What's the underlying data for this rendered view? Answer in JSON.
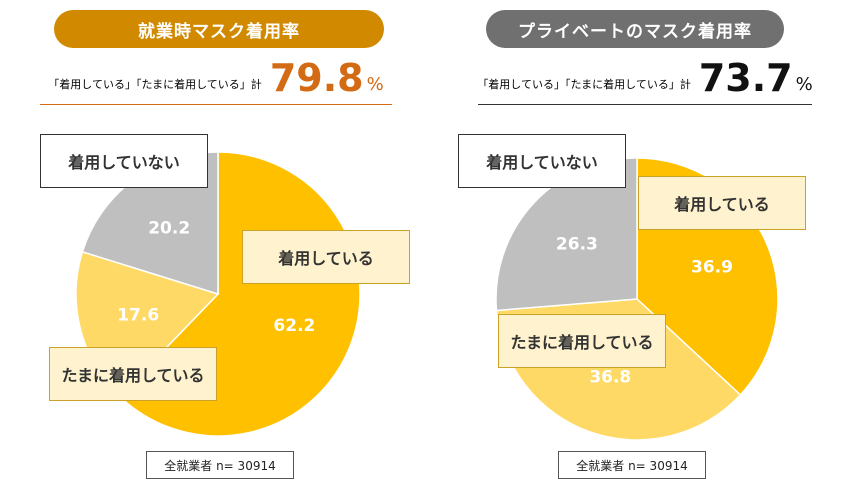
{
  "colors": {
    "work_accent": "#d18a00",
    "work_highlight": "#d36a14",
    "private_accent": "#707070",
    "private_text": "#111111",
    "wearing": "#ffc000",
    "sometimes": "#ffd966",
    "not_wearing": "#bfbfbf"
  },
  "chart_data": [
    {
      "type": "pie",
      "title": "就業時マスク着用率",
      "summary_label": "「着用している」「たまに着用している」計",
      "summary_value": "79.8",
      "summary_unit": "%",
      "categories": [
        "着用している",
        "たまに着用している",
        "着用していない"
      ],
      "values": [
        62.2,
        17.6,
        20.2
      ],
      "value_labels": [
        "62.2",
        "17.6",
        "20.2"
      ],
      "sample": "全就業者 n= 30914"
    },
    {
      "type": "pie",
      "title": "プライベートのマスク着用率",
      "summary_label": "「着用している」「たまに着用している」計",
      "summary_value": "73.7",
      "summary_unit": "%",
      "categories": [
        "着用している",
        "たまに着用している",
        "着用していない"
      ],
      "values": [
        36.9,
        36.8,
        26.3
      ],
      "value_labels": [
        "36.9",
        "36.8",
        "26.3"
      ],
      "sample": "全就業者 n= 30914"
    }
  ]
}
